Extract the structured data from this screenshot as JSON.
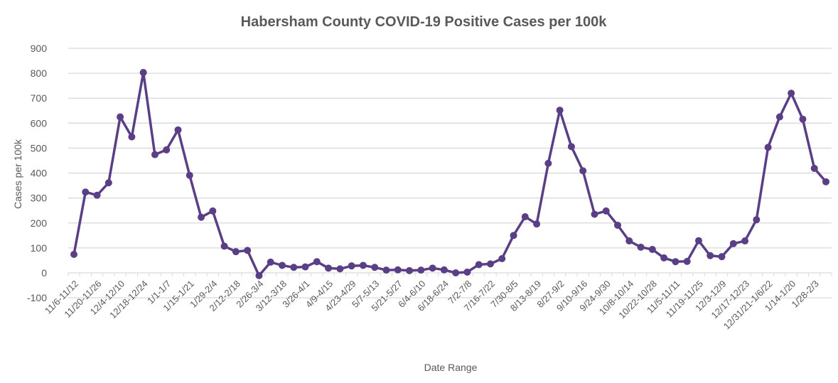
{
  "chart_data": {
    "type": "line",
    "title": "Habersham County COVID-19 Positive Cases per 100k",
    "xlabel": "Date Range",
    "ylabel": "Cases per 100k",
    "ylim": [
      -100,
      900
    ],
    "yticks": [
      -100,
      0,
      100,
      200,
      300,
      400,
      500,
      600,
      700,
      800,
      900
    ],
    "grid": true,
    "x_tick_labels": [
      "11/6-11/12",
      "11/20-11/26",
      "12/4-12/10",
      "12/18-12/24",
      "1/1-1/7",
      "1/15-1/21",
      "1/29-2/4",
      "2/12-2/18",
      "2/26-3/4",
      "3/12-3/18",
      "3/26-4/1",
      "4/9-4/15",
      "4/23-4/29",
      "5/7-5/13",
      "5/21-5/27",
      "6/4-6/10",
      "6/18-6/24",
      "7/2-7/8",
      "7/16-7/22",
      "7/30-8/5",
      "8/13-8/19",
      "8/27-9/2",
      "9/10-9/16",
      "9/24-9/30",
      "10/8-10/14",
      "10/22-10/28",
      "11/5-11/11",
      "11/19-11/25",
      "12/3-12/9",
      "12/17-12/23",
      "12/31/21-1/6/22",
      "1/14-1/20",
      "1/28-2/3"
    ],
    "series": [
      {
        "name": "Cases per 100k",
        "color": "#5b3f86",
        "values": [
          74,
          324,
          311,
          361,
          625,
          545,
          803,
          474,
          493,
          573,
          391,
          223,
          248,
          107,
          85,
          90,
          -11,
          43,
          30,
          22,
          24,
          45,
          19,
          16,
          28,
          30,
          22,
          11,
          12,
          9,
          11,
          19,
          12,
          0,
          3,
          33,
          36,
          57,
          150,
          225,
          196,
          439,
          652,
          506,
          409,
          235,
          248,
          191,
          128,
          103,
          94,
          60,
          45,
          46,
          129,
          69,
          65,
          117,
          128,
          213,
          503,
          625,
          720,
          616,
          419,
          365
        ]
      }
    ]
  }
}
